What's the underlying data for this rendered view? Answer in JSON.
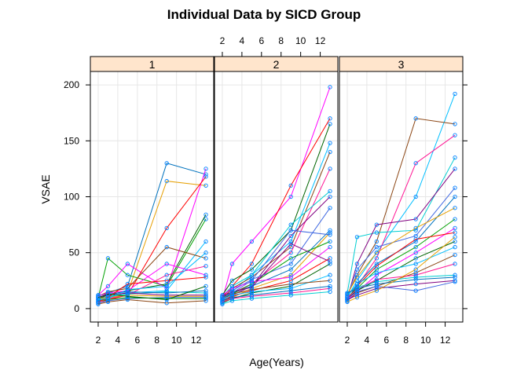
{
  "chart_data": {
    "type": "line",
    "title": "Individual Data by SICD Group",
    "xlabel": "Age(Years)",
    "ylabel": "VSAE",
    "xlim": [
      1.2,
      13.8
    ],
    "ylim": [
      -12,
      212
    ],
    "x_ticks": [
      2,
      4,
      6,
      8,
      10,
      12
    ],
    "y_ticks": [
      0,
      50,
      100,
      150,
      200
    ],
    "grid": true,
    "panels": [
      {
        "strip_label": "1",
        "series": [
          {
            "x": [
              2,
              3,
              5,
              9,
              13
            ],
            "y": [
              6,
              14,
              20,
              130,
              120
            ]
          },
          {
            "x": [
              2,
              3,
              5,
              9,
              13
            ],
            "y": [
              8,
              10,
              14,
              114,
              110
            ]
          },
          {
            "x": [
              2,
              3,
              5,
              9,
              13
            ],
            "y": [
              10,
              45,
              30,
              20,
              80
            ]
          },
          {
            "x": [
              2,
              3,
              5,
              9,
              13
            ],
            "y": [
              12,
              20,
              40,
              18,
              125
            ]
          },
          {
            "x": [
              2,
              3,
              5,
              9,
              13
            ],
            "y": [
              5,
              8,
              12,
              72,
              118
            ]
          },
          {
            "x": [
              2,
              3,
              5,
              9,
              13
            ],
            "y": [
              9,
              12,
              16,
              22,
              84
            ]
          },
          {
            "x": [
              2,
              3,
              5,
              9,
              13
            ],
            "y": [
              7,
              10,
              14,
              16,
              60
            ]
          },
          {
            "x": [
              2,
              3,
              5,
              9,
              13
            ],
            "y": [
              11,
              15,
              18,
              55,
              45
            ]
          },
          {
            "x": [
              2,
              3,
              5,
              9,
              13
            ],
            "y": [
              6,
              9,
              12,
              30,
              38
            ]
          },
          {
            "x": [
              2,
              3,
              5,
              9,
              13
            ],
            "y": [
              8,
              11,
              13,
              15,
              14
            ]
          },
          {
            "x": [
              2,
              3,
              5,
              9,
              13
            ],
            "y": [
              10,
              12,
              14,
              12,
              12
            ]
          },
          {
            "x": [
              2,
              3,
              5,
              9,
              13
            ],
            "y": [
              5,
              7,
              9,
              10,
              10
            ]
          },
          {
            "x": [
              2,
              3,
              5,
              9,
              13
            ],
            "y": [
              12,
              13,
              15,
              14,
              16
            ]
          },
          {
            "x": [
              2,
              3,
              5,
              9,
              13
            ],
            "y": [
              9,
              10,
              12,
              11,
              11
            ]
          },
          {
            "x": [
              2,
              3,
              5,
              9,
              13
            ],
            "y": [
              7,
              8,
              10,
              9,
              9
            ]
          },
          {
            "x": [
              2,
              3,
              5,
              9,
              13
            ],
            "y": [
              11,
              14,
              16,
              40,
              30
            ]
          },
          {
            "x": [
              2,
              3,
              5,
              9,
              13
            ],
            "y": [
              6,
              10,
              22,
              25,
              28
            ]
          },
          {
            "x": [
              2,
              3,
              5,
              9,
              13
            ],
            "y": [
              10,
              13,
              11,
              8,
              20
            ]
          },
          {
            "x": [
              2,
              3,
              5,
              9,
              13
            ],
            "y": [
              8,
              9,
              17,
              20,
              50
            ]
          },
          {
            "x": [
              2,
              3,
              5,
              9,
              13
            ],
            "y": [
              4,
              6,
              8,
              5,
              7
            ]
          }
        ]
      },
      {
        "strip_label": "2",
        "series": [
          {
            "x": [
              2,
              3,
              5,
              9,
              13
            ],
            "y": [
              8,
              40,
              60,
              100,
              198
            ]
          },
          {
            "x": [
              2,
              3,
              5,
              9,
              13
            ],
            "y": [
              10,
              20,
              40,
              110,
              170
            ]
          },
          {
            "x": [
              2,
              3,
              5,
              9,
              13
            ],
            "y": [
              12,
              25,
              35,
              70,
              165
            ]
          },
          {
            "x": [
              2,
              3,
              5,
              9,
              13
            ],
            "y": [
              6,
              15,
              30,
              60,
              148
            ]
          },
          {
            "x": [
              2,
              3,
              5,
              9,
              13
            ],
            "y": [
              9,
              18,
              28,
              55,
              140
            ]
          },
          {
            "x": [
              2,
              3,
              5,
              9,
              13
            ],
            "y": [
              7,
              14,
              22,
              50,
              125
            ]
          },
          {
            "x": [
              2,
              3,
              5,
              9,
              13
            ],
            "y": [
              11,
              20,
              30,
              75,
              105
            ]
          },
          {
            "x": [
              2,
              3,
              5,
              9,
              13
            ],
            "y": [
              5,
              12,
              20,
              65,
              100
            ]
          },
          {
            "x": [
              2,
              3,
              5,
              9,
              13
            ],
            "y": [
              8,
              16,
              26,
              40,
              90
            ]
          },
          {
            "x": [
              2,
              3,
              5,
              9,
              13
            ],
            "y": [
              10,
              14,
              20,
              35,
              70
            ]
          },
          {
            "x": [
              2,
              3,
              5,
              9,
              13
            ],
            "y": [
              6,
              10,
              18,
              30,
              68
            ]
          },
          {
            "x": [
              2,
              3,
              5,
              9,
              13
            ],
            "y": [
              9,
              13,
              22,
              45,
              60
            ]
          },
          {
            "x": [
              2,
              3,
              5,
              9,
              13
            ],
            "y": [
              12,
              18,
              24,
              28,
              55
            ]
          },
          {
            "x": [
              2,
              3,
              5,
              9,
              13
            ],
            "y": [
              7,
              11,
              16,
              25,
              45
            ]
          },
          {
            "x": [
              2,
              3,
              5,
              9,
              13
            ],
            "y": [
              5,
              9,
              14,
              20,
              40
            ]
          },
          {
            "x": [
              2,
              3,
              5,
              9,
              13
            ],
            "y": [
              8,
              12,
              15,
              18,
              30
            ]
          },
          {
            "x": [
              2,
              3,
              5,
              9,
              13
            ],
            "y": [
              10,
              13,
              17,
              22,
              25
            ]
          },
          {
            "x": [
              2,
              3,
              5,
              9,
              13
            ],
            "y": [
              6,
              9,
              11,
              14,
              18
            ]
          },
          {
            "x": [
              2,
              3,
              5,
              9,
              13
            ],
            "y": [
              4,
              7,
              9,
              12,
              15
            ]
          },
          {
            "x": [
              2,
              3,
              5,
              9,
              13
            ],
            "y": [
              11,
              15,
              19,
              58,
              42
            ]
          },
          {
            "x": [
              2,
              3,
              5,
              9,
              13
            ],
            "y": [
              9,
              14,
              25,
              70,
              66
            ]
          },
          {
            "x": [
              2,
              3,
              5,
              9,
              13
            ],
            "y": [
              7,
              10,
              12,
              16,
              20
            ]
          }
        ]
      },
      {
        "strip_label": "3",
        "series": [
          {
            "x": [
              2,
              3,
              5,
              9,
              13
            ],
            "y": [
              10,
              25,
              50,
              100,
              192
            ]
          },
          {
            "x": [
              2,
              3,
              5,
              9,
              13
            ],
            "y": [
              12,
              30,
              60,
              170,
              165
            ]
          },
          {
            "x": [
              2,
              3,
              5,
              9,
              13
            ],
            "y": [
              8,
              20,
              45,
              130,
              155
            ]
          },
          {
            "x": [
              2,
              3,
              5,
              9,
              13
            ],
            "y": [
              14,
              64,
              68,
              70,
              135
            ]
          },
          {
            "x": [
              2,
              3,
              5,
              9,
              13
            ],
            "y": [
              9,
              40,
              75,
              80,
              125
            ]
          },
          {
            "x": [
              2,
              3,
              5,
              9,
              13
            ],
            "y": [
              11,
              35,
              55,
              65,
              108
            ]
          },
          {
            "x": [
              2,
              3,
              5,
              9,
              13
            ],
            "y": [
              7,
              22,
              40,
              60,
              100
            ]
          },
          {
            "x": [
              2,
              3,
              5,
              9,
              13
            ],
            "y": [
              13,
              28,
              50,
              72,
              90
            ]
          },
          {
            "x": [
              2,
              3,
              5,
              9,
              13
            ],
            "y": [
              10,
              18,
              35,
              55,
              80
            ]
          },
          {
            "x": [
              2,
              3,
              5,
              9,
              13
            ],
            "y": [
              8,
              15,
              30,
              50,
              72
            ]
          },
          {
            "x": [
              2,
              3,
              5,
              9,
              13
            ],
            "y": [
              12,
              20,
              38,
              62,
              68
            ]
          },
          {
            "x": [
              2,
              3,
              5,
              9,
              13
            ],
            "y": [
              9,
              16,
              25,
              45,
              60
            ]
          },
          {
            "x": [
              2,
              3,
              5,
              9,
              13
            ],
            "y": [
              11,
              22,
              32,
              40,
              55
            ]
          },
          {
            "x": [
              2,
              3,
              5,
              9,
              13
            ],
            "y": [
              7,
              14,
              20,
              32,
              48
            ]
          },
          {
            "x": [
              2,
              3,
              5,
              9,
              13
            ],
            "y": [
              10,
              17,
              26,
              30,
              40
            ]
          },
          {
            "x": [
              2,
              3,
              5,
              9,
              13
            ],
            "y": [
              13,
              19,
              24,
              28,
              30
            ]
          },
          {
            "x": [
              2,
              3,
              5,
              9,
              13
            ],
            "y": [
              8,
              12,
              18,
              22,
              25
            ]
          },
          {
            "x": [
              2,
              3,
              5,
              9,
              13
            ],
            "y": [
              9,
              15,
              20,
              16,
              24
            ]
          },
          {
            "x": [
              2,
              3,
              5,
              9,
              13
            ],
            "y": [
              14,
              18,
              22,
              26,
              28
            ]
          },
          {
            "x": [
              2,
              3,
              5,
              9,
              13
            ],
            "y": [
              6,
              10,
              16,
              35,
              64
            ]
          }
        ]
      }
    ]
  },
  "colors": {
    "strip_background": "#ffe5cc",
    "point_stroke": "#0080ff",
    "grid": "#e6e6e6",
    "series_palette": [
      "#0072bd",
      "#e69f00",
      "#00a000",
      "#ff00ff",
      "#ff0000",
      "#006400",
      "#00bfff",
      "#8b4513",
      "#ff1493",
      "#00ced1",
      "#800080",
      "#4169e1"
    ]
  }
}
